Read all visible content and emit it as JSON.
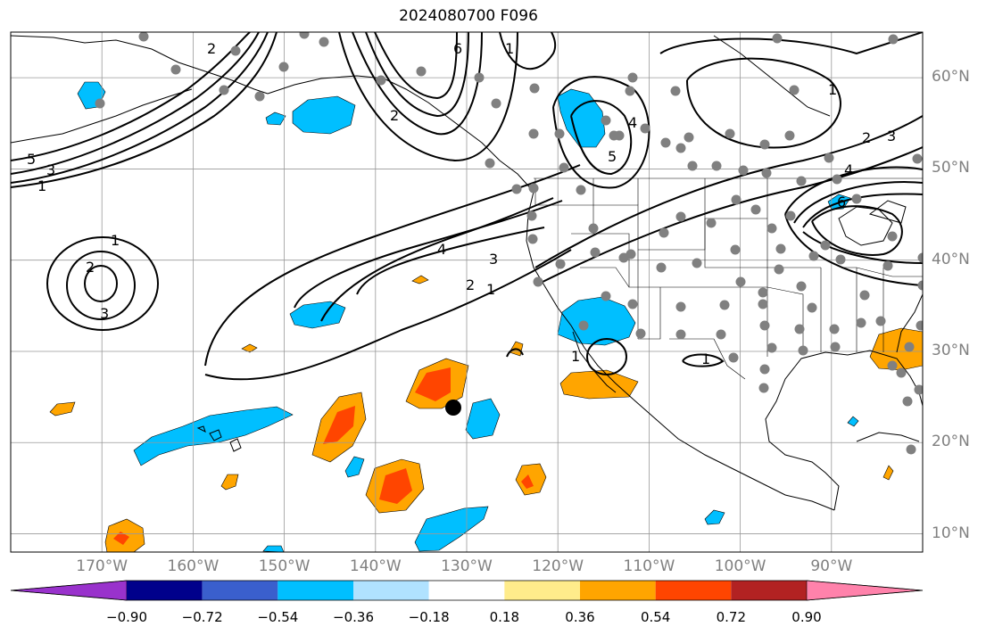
{
  "title": "2024080700 F096",
  "lat_labels": [
    {
      "lat": 60,
      "label": "60°N"
    },
    {
      "lat": 50,
      "label": "50°N"
    },
    {
      "lat": 40,
      "label": "40°N"
    },
    {
      "lat": 30,
      "label": "30°N"
    },
    {
      "lat": 20,
      "label": "20°N"
    },
    {
      "lat": 10,
      "label": "10°N"
    }
  ],
  "lon_labels": [
    {
      "lon": -170,
      "label": "170°W"
    },
    {
      "lon": -160,
      "label": "160°W"
    },
    {
      "lon": -150,
      "label": "150°W"
    },
    {
      "lon": -140,
      "label": "140°W"
    },
    {
      "lon": -130,
      "label": "130°W"
    },
    {
      "lon": -120,
      "label": "120°W"
    },
    {
      "lon": -110,
      "label": "110°W"
    },
    {
      "lon": -100,
      "label": "100°W"
    },
    {
      "lon": -90,
      "label": "90°W"
    }
  ],
  "map_extent": {
    "lon_min": -180,
    "lon_max": -80,
    "lat_min": 8,
    "lat_max": 65
  },
  "colorbar": {
    "colors": [
      "#9932cc",
      "#00008b",
      "#3a5fcd",
      "#00bfff",
      "#b0e2ff",
      "#ffffff",
      "#ffec8b",
      "#ffa500",
      "#ff4500",
      "#b22222",
      "#ff82ab"
    ],
    "levels": [
      -0.9,
      -0.72,
      -0.54,
      -0.36,
      -0.18,
      0.18,
      0.36,
      0.54,
      0.72,
      0.9
    ],
    "labels": [
      "−0.90",
      "−0.72",
      "−0.54",
      "−0.36",
      "−0.18",
      "0.18",
      "0.36",
      "0.54",
      "0.72",
      "0.90"
    ]
  },
  "contour_labels": [
    "1",
    "2",
    "3",
    "4",
    "5",
    "6"
  ],
  "marker_color": "#808080",
  "highlight_point": {
    "lon": -131.5,
    "lat": 24
  }
}
